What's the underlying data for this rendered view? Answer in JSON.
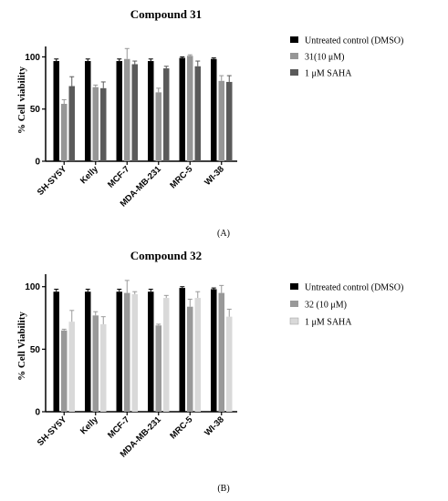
{
  "figure_labels": [
    "(A)",
    "(B)"
  ],
  "chart_data": [
    {
      "type": "bar",
      "title": "Compound 31",
      "ylabel": "% Cell viability",
      "xlabel": "",
      "ylim": [
        0,
        110
      ],
      "yticks": [
        0,
        50,
        100
      ],
      "categories": [
        "SH-SY5Y",
        "Kelly",
        "MCF-7",
        "MDA-MB-231",
        "MRC-5",
        "WI-38"
      ],
      "legend_position": "right",
      "series": [
        {
          "name": "Untreated control (DMSO)",
          "color": "#000000",
          "values": [
            96,
            96,
            96,
            96,
            99,
            98
          ],
          "errors": [
            2,
            2,
            2,
            2,
            1,
            1
          ]
        },
        {
          "name": "31(10 μM)",
          "color": "#969696",
          "values": [
            55,
            71,
            98,
            66,
            101,
            77
          ],
          "errors": [
            4,
            2,
            10,
            4,
            1,
            5
          ]
        },
        {
          "name": "1 μM SAHA",
          "color": "#5a5a5a",
          "values": [
            72,
            70,
            93,
            89,
            91,
            76
          ],
          "errors": [
            9,
            6,
            3,
            2,
            5,
            6
          ]
        }
      ]
    },
    {
      "type": "bar",
      "title": "Compound 32",
      "ylabel": "% Cell Viability",
      "xlabel": "",
      "ylim": [
        0,
        110
      ],
      "yticks": [
        0,
        50,
        100
      ],
      "categories": [
        "SH-SY5Y",
        "Kelly",
        "MCF-7",
        "MDA-MB-231",
        "MRC-5",
        "WI-38"
      ],
      "legend_position": "right",
      "series": [
        {
          "name": "Untreated control (DMSO)",
          "color": "#000000",
          "values": [
            96,
            96,
            96,
            96,
            99,
            98
          ],
          "errors": [
            2,
            2,
            2,
            2,
            1,
            1
          ]
        },
        {
          "name": "32 (10 μM)",
          "color": "#999999",
          "values": [
            65,
            77,
            95,
            69,
            84,
            95
          ],
          "errors": [
            1,
            3,
            10,
            1,
            6,
            6
          ]
        },
        {
          "name": "1 μM SAHA",
          "color": "#d9d9d9",
          "values": [
            72,
            70,
            94,
            91,
            91,
            76
          ],
          "errors": [
            9,
            6,
            2,
            2,
            5,
            6
          ]
        }
      ]
    }
  ]
}
